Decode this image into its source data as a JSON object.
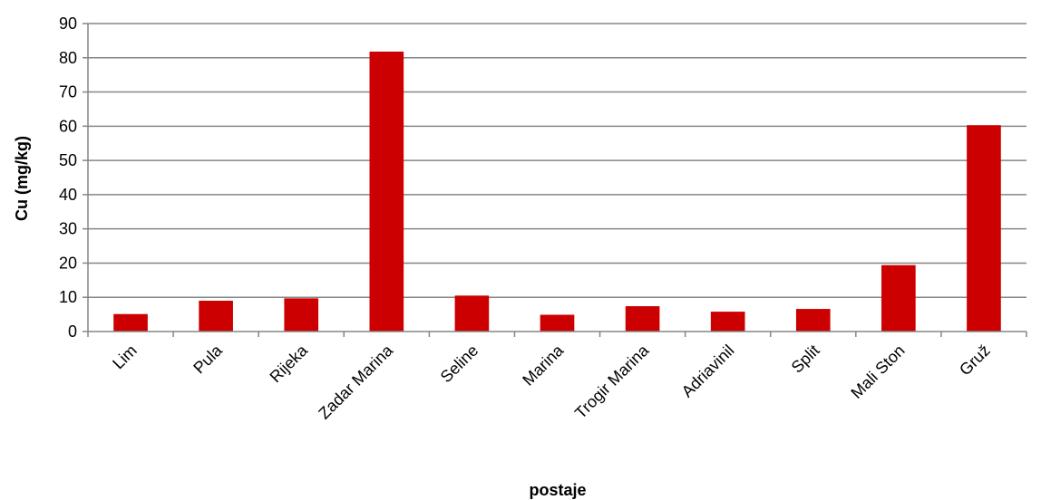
{
  "chart_data": {
    "type": "bar",
    "title": "",
    "xlabel": "postaje",
    "ylabel": "Cu (mg/kg)",
    "ylim": [
      0,
      90
    ],
    "yticks": [
      "0",
      "10",
      "20",
      "30",
      "40",
      "50",
      "60",
      "70",
      "80",
      "90"
    ],
    "grid": true,
    "legend": "none",
    "categories": [
      "Lim",
      "Pula",
      "Rijeka",
      "Zadar Marina",
      "Seline",
      "Marina",
      "Trogir Marina",
      "Adriavinil",
      "Split",
      "Mali Ston",
      "Gruž"
    ],
    "series": [
      {
        "values": [
          5.1,
          9.0,
          9.7,
          81.8,
          10.5,
          4.9,
          7.4,
          5.8,
          6.6,
          19.4,
          60.3
        ]
      }
    ],
    "colors": {
      "bar": "#cc0000",
      "grid": "#868686",
      "axis": "#868686"
    }
  }
}
